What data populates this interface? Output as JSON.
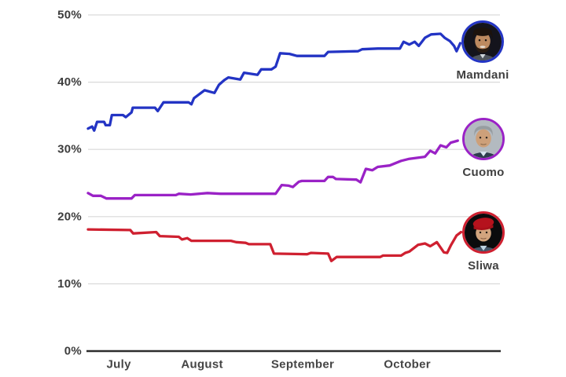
{
  "page": {
    "background_color": "#ffffff",
    "text_color": "#3d3d3d"
  },
  "chart_data": {
    "type": "line",
    "title": "",
    "grid": true,
    "legend_position": "right of line ends, circular photo badges with names below",
    "x_axis": {
      "labels": [
        "July",
        "August",
        "September",
        "October"
      ],
      "label_positions_pct": [
        7.5,
        27.8,
        52.3,
        77.8
      ]
    },
    "y_axis": {
      "tick_labels": [
        "0%",
        "10%",
        "20%",
        "30%",
        "40%",
        "50%"
      ],
      "tick_values": [
        0,
        10,
        20,
        30,
        40,
        50
      ],
      "min": 0,
      "max": 50,
      "unit": "percent"
    },
    "series": [
      {
        "name": "Mamdani",
        "color": "#2334c4",
        "points": [
          [
            0,
            33.1
          ],
          [
            1,
            33.4
          ],
          [
            1.5,
            32.8
          ],
          [
            2.2,
            34.1
          ],
          [
            3.9,
            34.1
          ],
          [
            4.3,
            33.6
          ],
          [
            5.3,
            33.6
          ],
          [
            5.8,
            35.1
          ],
          [
            8.5,
            35.1
          ],
          [
            9.2,
            34.8
          ],
          [
            10.6,
            35.5
          ],
          [
            10.9,
            36.2
          ],
          [
            16.3,
            36.2
          ],
          [
            17,
            35.7
          ],
          [
            18.4,
            37
          ],
          [
            24.5,
            37
          ],
          [
            25.2,
            36.7
          ],
          [
            25.8,
            37.6
          ],
          [
            28.4,
            38.8
          ],
          [
            30.8,
            38.4
          ],
          [
            31.9,
            39.6
          ],
          [
            33.2,
            40.3
          ],
          [
            34.2,
            40.7
          ],
          [
            37.1,
            40.4
          ],
          [
            38,
            41.4
          ],
          [
            41.3,
            41.1
          ],
          [
            42.2,
            41.9
          ],
          [
            44.7,
            41.9
          ],
          [
            45.7,
            42.3
          ],
          [
            46.8,
            44.3
          ],
          [
            49.1,
            44.2
          ],
          [
            50.9,
            43.9
          ],
          [
            57.6,
            43.9
          ],
          [
            58.5,
            44.5
          ],
          [
            65.8,
            44.6
          ],
          [
            66.8,
            44.9
          ],
          [
            70.6,
            45
          ],
          [
            76,
            45
          ],
          [
            76.9,
            46
          ],
          [
            78.3,
            45.6
          ],
          [
            79.6,
            46
          ],
          [
            80.6,
            45.4
          ],
          [
            82.1,
            46.6
          ],
          [
            83.6,
            47.1
          ],
          [
            85.9,
            47.2
          ],
          [
            86.9,
            46.6
          ],
          [
            88.2,
            46.1
          ],
          [
            89.2,
            45.4
          ],
          [
            89.8,
            44.6
          ],
          [
            90.7,
            45.8
          ]
        ]
      },
      {
        "name": "Cuomo",
        "color": "#9a22c6",
        "points": [
          [
            0,
            23.5
          ],
          [
            1.2,
            23.1
          ],
          [
            3.1,
            23.1
          ],
          [
            4.5,
            22.7
          ],
          [
            10.6,
            22.7
          ],
          [
            11.4,
            23.2
          ],
          [
            21.4,
            23.2
          ],
          [
            22.1,
            23.4
          ],
          [
            25,
            23.3
          ],
          [
            29.1,
            23.5
          ],
          [
            32.3,
            23.4
          ],
          [
            45.7,
            23.4
          ],
          [
            47.2,
            24.7
          ],
          [
            48.9,
            24.6
          ],
          [
            49.9,
            24.4
          ],
          [
            51.4,
            25.2
          ],
          [
            52.1,
            25.3
          ],
          [
            57.6,
            25.3
          ],
          [
            58.5,
            25.9
          ],
          [
            59.7,
            25.9
          ],
          [
            60.4,
            25.6
          ],
          [
            65.4,
            25.5
          ],
          [
            66.4,
            25.1
          ],
          [
            67.7,
            27.1
          ],
          [
            69.3,
            26.9
          ],
          [
            70.6,
            27.4
          ],
          [
            73.5,
            27.6
          ],
          [
            76.3,
            28.3
          ],
          [
            78.3,
            28.6
          ],
          [
            82.1,
            28.9
          ],
          [
            83.4,
            29.8
          ],
          [
            84.6,
            29.4
          ],
          [
            85.9,
            30.6
          ],
          [
            87.3,
            30.3
          ],
          [
            88.4,
            31
          ],
          [
            90.1,
            31.3
          ]
        ]
      },
      {
        "name": "Sliwa",
        "color": "#cf2030",
        "points": [
          [
            0,
            18.1
          ],
          [
            10.3,
            18
          ],
          [
            11,
            17.5
          ],
          [
            16.6,
            17.7
          ],
          [
            17.5,
            17.1
          ],
          [
            22.1,
            17
          ],
          [
            22.9,
            16.6
          ],
          [
            24.2,
            16.8
          ],
          [
            25.2,
            16.4
          ],
          [
            34.8,
            16.4
          ],
          [
            36.1,
            16.2
          ],
          [
            38.4,
            16.1
          ],
          [
            39.2,
            15.9
          ],
          [
            44.4,
            15.9
          ],
          [
            45.3,
            14.5
          ],
          [
            53.4,
            14.4
          ],
          [
            54.3,
            14.6
          ],
          [
            58.5,
            14.5
          ],
          [
            59.3,
            13.4
          ],
          [
            60.6,
            14
          ],
          [
            71.2,
            14
          ],
          [
            71.9,
            14.2
          ],
          [
            76.3,
            14.2
          ],
          [
            77.3,
            14.6
          ],
          [
            78.3,
            14.8
          ],
          [
            80.4,
            15.8
          ],
          [
            82.1,
            16
          ],
          [
            83.4,
            15.6
          ],
          [
            85,
            16.2
          ],
          [
            86.7,
            14.7
          ],
          [
            87.5,
            14.6
          ],
          [
            88.4,
            15.7
          ],
          [
            89.8,
            17.2
          ],
          [
            90.9,
            17.7
          ]
        ]
      }
    ]
  }
}
